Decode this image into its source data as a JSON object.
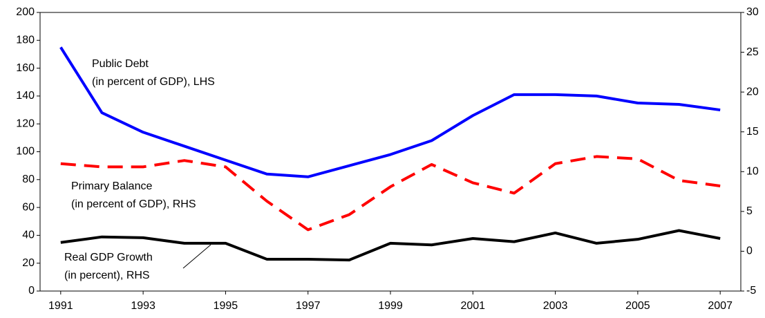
{
  "chart_data": {
    "type": "line",
    "x": [
      1991,
      1992,
      1993,
      1994,
      1995,
      1996,
      1997,
      1998,
      1999,
      2000,
      2001,
      2002,
      2003,
      2004,
      2005,
      2006,
      2007
    ],
    "xlim": [
      1990.5,
      2007.5
    ],
    "xticks": [
      1991,
      1993,
      1995,
      1997,
      1999,
      2001,
      2003,
      2005,
      2007
    ],
    "ylim": [
      0,
      200
    ],
    "yticks": [
      0,
      20,
      40,
      60,
      80,
      100,
      120,
      140,
      160,
      180,
      200
    ],
    "y2lim": [
      -5,
      30
    ],
    "y2ticks": [
      -5,
      0,
      5,
      10,
      15,
      20,
      25,
      30
    ],
    "series": [
      {
        "label": [
          "Public Debt",
          "(in percent of GDP), LHS"
        ],
        "color": "#0000ff",
        "dashed": false,
        "axis": "y",
        "values": [
          175,
          128,
          114,
          104,
          94,
          84,
          82,
          90,
          98,
          108,
          126,
          141,
          141,
          140,
          135,
          134,
          130
        ]
      },
      {
        "label": [
          "Primary Balance",
          "(in percent of GDP), RHS"
        ],
        "color": "#ff0000",
        "dashed": true,
        "axis": "y2",
        "values": [
          11.0,
          10.6,
          10.6,
          11.4,
          10.6,
          6.3,
          2.7,
          4.6,
          8.1,
          10.9,
          8.6,
          7.3,
          11.0,
          11.9,
          11.6,
          8.9,
          8.2
        ]
      },
      {
        "label": [
          "Real GDP Growth",
          "(in percent), RHS"
        ],
        "color": "#000000",
        "dashed": false,
        "axis": "y2",
        "values": [
          1.1,
          1.8,
          1.7,
          1.0,
          1.0,
          -1.0,
          -1.0,
          -1.1,
          1.0,
          0.8,
          1.6,
          1.2,
          2.3,
          1.0,
          1.5,
          2.6,
          1.6
        ]
      }
    ]
  }
}
